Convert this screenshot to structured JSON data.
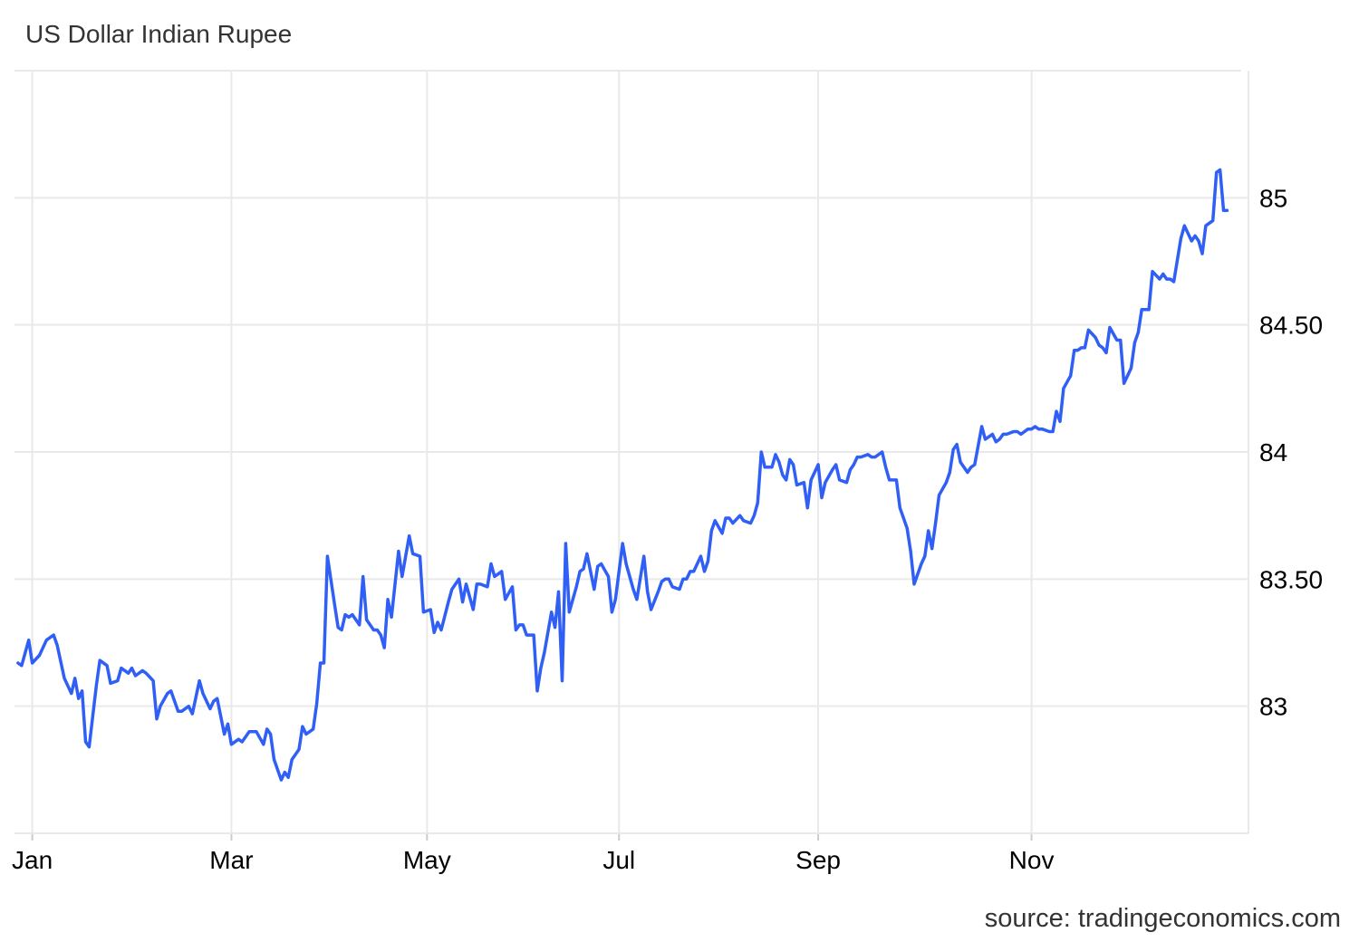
{
  "chart_data": {
    "type": "line",
    "title": "US Dollar Indian Rupee",
    "source": "source: tradingeconomics.com",
    "xlabel": "",
    "ylabel": "",
    "x_ticks": [
      {
        "label": "Jan",
        "day": 4
      },
      {
        "label": "Mar",
        "day": 60
      },
      {
        "label": "May",
        "day": 115
      },
      {
        "label": "Jul",
        "day": 169
      },
      {
        "label": "Sep",
        "day": 225
      },
      {
        "label": "Nov",
        "day": 285
      }
    ],
    "y_ticks": [
      {
        "label": "83",
        "value": 83
      },
      {
        "label": "83.50",
        "value": 83.5
      },
      {
        "label": "84",
        "value": 84
      },
      {
        "label": "84.50",
        "value": 84.5
      },
      {
        "label": "85",
        "value": 85
      }
    ],
    "xlim": [
      -1,
      346
    ],
    "ylim": [
      82.5,
      85.5
    ],
    "grid": true,
    "colors": {
      "line": "#2f5ff5",
      "grid": "#e9e9e9"
    },
    "series": [
      {
        "name": "",
        "x": [
          0,
          1,
          3,
          4,
          6,
          8,
          10,
          11,
          13,
          15,
          16,
          17,
          18,
          19,
          20,
          22,
          23,
          25,
          26,
          28,
          29,
          31,
          32,
          33,
          35,
          36,
          38,
          39,
          40,
          42,
          43,
          45,
          46,
          48,
          49,
          51,
          52,
          54,
          55,
          56,
          58,
          59,
          60,
          62,
          63,
          65,
          66,
          67,
          69,
          70,
          71,
          72,
          74,
          75,
          76,
          77,
          79,
          80,
          81,
          83,
          84,
          85,
          86,
          87,
          89,
          90,
          91,
          92,
          93,
          94,
          96,
          97,
          98,
          100,
          101,
          102,
          103,
          104,
          105,
          107,
          108,
          110,
          111,
          113,
          114,
          116,
          117,
          118,
          119,
          121,
          122,
          124,
          125,
          126,
          128,
          129,
          130,
          132,
          133,
          134,
          136,
          137,
          139,
          140,
          141,
          142,
          143,
          145,
          146,
          147,
          148,
          150,
          151,
          152,
          153,
          154,
          155,
          157,
          158,
          159,
          160,
          162,
          163,
          164,
          166,
          167,
          168,
          170,
          171,
          173,
          174,
          176,
          177,
          178,
          180,
          181,
          182,
          183,
          184,
          186,
          187,
          188,
          189,
          190,
          192,
          193,
          194,
          195,
          196,
          198,
          199,
          200,
          201,
          203,
          204,
          206,
          207,
          208,
          209,
          210,
          212,
          213,
          214,
          215,
          216,
          217,
          218,
          219,
          221,
          222,
          223,
          225,
          226,
          227,
          229,
          230,
          231,
          233,
          234,
          235,
          236,
          237,
          239,
          240,
          241,
          243,
          244,
          245,
          246,
          247,
          248,
          250,
          251,
          252,
          254,
          255,
          256,
          257,
          258,
          259,
          261,
          262,
          263,
          264,
          265,
          267,
          268,
          269,
          271,
          272,
          274,
          275,
          276,
          277,
          278,
          280,
          281,
          282,
          284,
          285,
          286,
          287,
          288,
          290,
          291,
          292,
          293,
          294,
          296,
          297,
          298,
          299,
          300,
          301,
          303,
          304,
          305,
          306,
          307,
          309,
          310,
          311,
          313,
          314,
          315,
          316,
          318,
          319,
          321,
          322,
          323,
          324,
          325,
          327,
          328,
          330,
          331,
          332,
          333,
          334,
          336,
          337,
          338,
          339,
          340
        ],
        "values": [
          83.17,
          83.16,
          83.26,
          83.17,
          83.2,
          83.26,
          83.28,
          83.24,
          83.11,
          83.05,
          83.11,
          83.03,
          83.06,
          82.86,
          82.84,
          83.08,
          83.18,
          83.16,
          83.09,
          83.1,
          83.15,
          83.13,
          83.15,
          83.12,
          83.14,
          83.13,
          83.1,
          82.95,
          83.0,
          83.05,
          83.06,
          82.98,
          82.98,
          83.0,
          82.97,
          83.1,
          83.05,
          82.99,
          83.02,
          83.03,
          82.89,
          82.93,
          82.85,
          82.87,
          82.86,
          82.9,
          82.9,
          82.9,
          82.85,
          82.91,
          82.89,
          82.79,
          82.71,
          82.74,
          82.72,
          82.79,
          82.83,
          82.92,
          82.89,
          82.91,
          83.01,
          83.17,
          83.17,
          83.59,
          83.4,
          83.31,
          83.3,
          83.36,
          83.35,
          83.36,
          83.32,
          83.51,
          83.34,
          83.3,
          83.3,
          83.28,
          83.23,
          83.42,
          83.35,
          83.61,
          83.51,
          83.67,
          83.6,
          83.59,
          83.37,
          83.38,
          83.29,
          83.33,
          83.3,
          83.41,
          83.46,
          83.5,
          83.41,
          83.48,
          83.38,
          83.48,
          83.48,
          83.47,
          83.56,
          83.51,
          83.53,
          83.42,
          83.47,
          83.3,
          83.32,
          83.32,
          83.28,
          83.28,
          83.06,
          83.15,
          83.21,
          83.37,
          83.31,
          83.45,
          83.1,
          83.64,
          83.37,
          83.47,
          83.53,
          83.54,
          83.6,
          83.46,
          83.55,
          83.56,
          83.51,
          83.37,
          83.42,
          83.64,
          83.56,
          83.46,
          83.42,
          83.59,
          83.45,
          83.38,
          83.45,
          83.49,
          83.5,
          83.5,
          83.47,
          83.46,
          83.5,
          83.5,
          83.53,
          83.53,
          83.59,
          83.53,
          83.57,
          83.69,
          83.73,
          83.68,
          83.74,
          83.74,
          83.72,
          83.75,
          83.73,
          83.72,
          83.75,
          83.8,
          84.0,
          83.94,
          83.94,
          83.99,
          83.96,
          83.91,
          83.89,
          83.97,
          83.95,
          83.87,
          83.88,
          83.78,
          83.89,
          83.95,
          83.82,
          83.88,
          83.93,
          83.95,
          83.89,
          83.88,
          83.93,
          83.95,
          83.98,
          83.98,
          83.99,
          83.98,
          83.98,
          84.0,
          83.94,
          83.89,
          83.89,
          83.89,
          83.78,
          83.7,
          83.61,
          83.48,
          83.56,
          83.59,
          83.69,
          83.62,
          83.72,
          83.83,
          83.88,
          83.92,
          84.01,
          84.03,
          83.96,
          83.92,
          83.94,
          83.95,
          84.1,
          84.05,
          84.07,
          84.04,
          84.05,
          84.07,
          84.07,
          84.08,
          84.08,
          84.07,
          84.09,
          84.09,
          84.1,
          84.09,
          84.09,
          84.08,
          84.08,
          84.16,
          84.12,
          84.25,
          84.3,
          84.4,
          84.4,
          84.41,
          84.41,
          84.48,
          84.45,
          84.42,
          84.41,
          84.39,
          84.49,
          84.44,
          84.44,
          84.27,
          84.33,
          84.43,
          84.47,
          84.56,
          84.56,
          84.71,
          84.68,
          84.7,
          84.68,
          84.68,
          84.67,
          84.84,
          84.89,
          84.83,
          84.85,
          84.83,
          84.78,
          84.89,
          84.91,
          85.1,
          85.11,
          84.95,
          84.95
        ]
      }
    ]
  }
}
